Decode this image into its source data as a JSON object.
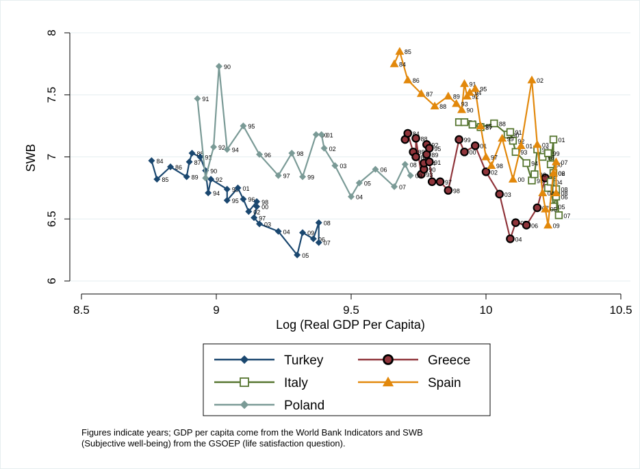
{
  "chart_data": {
    "type": "line",
    "xlabel": "Log (Real GDP Per Capita)",
    "ylabel": "SWB",
    "xlim": [
      8.5,
      10.5
    ],
    "ylim": [
      6,
      8
    ],
    "xticks": [
      "8.5",
      "9",
      "9.5",
      "10",
      "10.5"
    ],
    "yticks": [
      "6",
      "6.5",
      "7",
      "7.5",
      "8"
    ],
    "grid": "horizontal",
    "legend_position": "bottom",
    "note_line1": "Figures indicate years; GDP per capita come from the World Bank Indicators and SWB",
    "note_line2": "(Subjective well-being) from the GSOEP (life satisfaction question).",
    "series": [
      {
        "name": "Turkey",
        "color": "#1a476f",
        "marker": "diamond",
        "points": [
          {
            "x": 8.76,
            "y": 6.97,
            "label": "84"
          },
          {
            "x": 8.78,
            "y": 6.82,
            "label": "85"
          },
          {
            "x": 8.83,
            "y": 6.92,
            "label": "86"
          },
          {
            "x": 8.89,
            "y": 6.84,
            "label": "89"
          },
          {
            "x": 8.9,
            "y": 6.96,
            "label": "87"
          },
          {
            "x": 8.91,
            "y": 7.03,
            "label": "88"
          },
          {
            "x": 8.94,
            "y": 7.0,
            "label": "91"
          },
          {
            "x": 8.96,
            "y": 6.89,
            "label": "90"
          },
          {
            "x": 8.97,
            "y": 6.71,
            "label": "94"
          },
          {
            "x": 8.98,
            "y": 6.82,
            "label": "92"
          },
          {
            "x": 9.04,
            "y": 6.74,
            "label": "93"
          },
          {
            "x": 9.04,
            "y": 6.65,
            "label": "95"
          },
          {
            "x": 9.08,
            "y": 6.75,
            "label": "01"
          },
          {
            "x": 9.1,
            "y": 6.66,
            "label": "96"
          },
          {
            "x": 9.12,
            "y": 6.56,
            "label": "02"
          },
          {
            "x": 9.15,
            "y": 6.64,
            "label": "98"
          },
          {
            "x": 9.15,
            "y": 6.6,
            "label": "00"
          },
          {
            "x": 9.14,
            "y": 6.51,
            "label": "97"
          },
          {
            "x": 9.16,
            "y": 6.46,
            "label": "03"
          },
          {
            "x": 9.23,
            "y": 6.4,
            "label": "04"
          },
          {
            "x": 9.3,
            "y": 6.21,
            "label": "05"
          },
          {
            "x": 9.32,
            "y": 6.39,
            "label": "09"
          },
          {
            "x": 9.36,
            "y": 6.34,
            "label": "06"
          },
          {
            "x": 9.38,
            "y": 6.47,
            "label": "08"
          },
          {
            "x": 9.38,
            "y": 6.31,
            "label": "07"
          }
        ]
      },
      {
        "name": "Greece",
        "color": "#90353b",
        "marker": "circle",
        "points": [
          {
            "x": 9.7,
            "y": 7.14,
            "label": ""
          },
          {
            "x": 9.71,
            "y": 7.19,
            "label": "84"
          },
          {
            "x": 9.73,
            "y": 7.04,
            "label": "85"
          },
          {
            "x": 9.74,
            "y": 7.0,
            "label": "86"
          },
          {
            "x": 9.74,
            "y": 7.15,
            "label": "88"
          },
          {
            "x": 9.76,
            "y": 6.86,
            "label": "93"
          },
          {
            "x": 9.77,
            "y": 6.9,
            "label": "90"
          },
          {
            "x": 9.77,
            "y": 6.95,
            "label": "94"
          },
          {
            "x": 9.78,
            "y": 7.02,
            "label": "89"
          },
          {
            "x": 9.78,
            "y": 7.1,
            "label": "92"
          },
          {
            "x": 9.79,
            "y": 7.07,
            "label": "95"
          },
          {
            "x": 9.79,
            "y": 6.96,
            "label": "91"
          },
          {
            "x": 9.8,
            "y": 6.8,
            "label": "96"
          },
          {
            "x": 9.83,
            "y": 6.8,
            "label": "97"
          },
          {
            "x": 9.86,
            "y": 6.73,
            "label": "98"
          },
          {
            "x": 9.9,
            "y": 7.14,
            "label": "99"
          },
          {
            "x": 9.92,
            "y": 7.04,
            "label": "00"
          },
          {
            "x": 9.96,
            "y": 7.09,
            "label": "01"
          },
          {
            "x": 10.0,
            "y": 6.88,
            "label": "02"
          },
          {
            "x": 10.05,
            "y": 6.7,
            "label": "03"
          },
          {
            "x": 10.09,
            "y": 6.34,
            "label": "04"
          },
          {
            "x": 10.11,
            "y": 6.47,
            "label": "05"
          },
          {
            "x": 10.15,
            "y": 6.45,
            "label": "06"
          },
          {
            "x": 10.19,
            "y": 6.59,
            "label": "07"
          },
          {
            "x": 10.22,
            "y": 6.83,
            "label": "08"
          }
        ]
      },
      {
        "name": "Italy",
        "color": "#55752f",
        "marker": "square",
        "points": [
          {
            "x": 9.9,
            "y": 7.28,
            "label": "85"
          },
          {
            "x": 9.92,
            "y": 7.28,
            "label": "84"
          },
          {
            "x": 9.95,
            "y": 7.26,
            "label": "86"
          },
          {
            "x": 9.98,
            "y": 7.24,
            "label": "87"
          },
          {
            "x": 10.03,
            "y": 7.27,
            "label": "88"
          },
          {
            "x": 10.08,
            "y": 7.18,
            "label": "90"
          },
          {
            "x": 10.09,
            "y": 7.2,
            "label": "91"
          },
          {
            "x": 10.1,
            "y": 7.13,
            "label": "92"
          },
          {
            "x": 10.11,
            "y": 7.04,
            "label": "93"
          },
          {
            "x": 10.15,
            "y": 6.95,
            "label": "94"
          },
          {
            "x": 10.17,
            "y": 6.81,
            "label": "95"
          },
          {
            "x": 10.18,
            "y": 6.86,
            "label": "96"
          },
          {
            "x": 10.19,
            "y": 7.06,
            "label": "97"
          },
          {
            "x": 10.21,
            "y": 7.0,
            "label": "98"
          },
          {
            "x": 10.23,
            "y": 7.03,
            "label": "99"
          },
          {
            "x": 10.24,
            "y": 6.94,
            "label": "00"
          },
          {
            "x": 10.25,
            "y": 7.14,
            "label": "01"
          },
          {
            "x": 10.25,
            "y": 6.87,
            "label": "02"
          },
          {
            "x": 10.23,
            "y": 6.75,
            "label": "03"
          },
          {
            "x": 10.24,
            "y": 6.8,
            "label": "04"
          },
          {
            "x": 10.25,
            "y": 6.6,
            "label": "05"
          },
          {
            "x": 10.26,
            "y": 6.68,
            "label": "06"
          },
          {
            "x": 10.27,
            "y": 6.53,
            "label": "07"
          },
          {
            "x": 10.26,
            "y": 6.74,
            "label": "08"
          }
        ]
      },
      {
        "name": "Spain",
        "color": "#e2880b",
        "marker": "triangle",
        "points": [
          {
            "x": 9.66,
            "y": 7.75,
            "label": "84"
          },
          {
            "x": 9.68,
            "y": 7.85,
            "label": "85"
          },
          {
            "x": 9.71,
            "y": 7.62,
            "label": "86"
          },
          {
            "x": 9.76,
            "y": 7.51,
            "label": "87"
          },
          {
            "x": 9.81,
            "y": 7.41,
            "label": "88"
          },
          {
            "x": 9.86,
            "y": 7.49,
            "label": "89"
          },
          {
            "x": 9.89,
            "y": 7.43,
            "label": "93"
          },
          {
            "x": 9.91,
            "y": 7.38,
            "label": "90"
          },
          {
            "x": 9.92,
            "y": 7.59,
            "label": "91"
          },
          {
            "x": 9.93,
            "y": 7.49,
            "label": "92"
          },
          {
            "x": 9.94,
            "y": 7.52,
            "label": "94"
          },
          {
            "x": 9.96,
            "y": 7.55,
            "label": "95"
          },
          {
            "x": 9.98,
            "y": 7.25,
            "label": "96"
          },
          {
            "x": 10.0,
            "y": 7.0,
            "label": "97"
          },
          {
            "x": 10.02,
            "y": 6.93,
            "label": "98"
          },
          {
            "x": 10.06,
            "y": 7.15,
            "label": "99"
          },
          {
            "x": 10.1,
            "y": 6.82,
            "label": "00"
          },
          {
            "x": 10.13,
            "y": 7.09,
            "label": "01"
          },
          {
            "x": 10.17,
            "y": 7.62,
            "label": "02"
          },
          {
            "x": 10.19,
            "y": 7.1,
            "label": "03"
          },
          {
            "x": 10.21,
            "y": 6.71,
            "label": "04"
          },
          {
            "x": 10.22,
            "y": 6.58,
            "label": "05"
          },
          {
            "x": 10.23,
            "y": 6.45,
            "label": "09"
          },
          {
            "x": 10.25,
            "y": 6.87,
            "label": "06"
          },
          {
            "x": 10.26,
            "y": 6.96,
            "label": "07"
          },
          {
            "x": 10.26,
            "y": 6.71,
            "label": "08"
          }
        ]
      },
      {
        "name": "Poland",
        "color": "#7a9a96",
        "marker": "diamond",
        "points": [
          {
            "x": 8.93,
            "y": 7.47,
            "label": "91"
          },
          {
            "x": 8.96,
            "y": 6.83,
            "label": ""
          },
          {
            "x": 8.99,
            "y": 7.08,
            "label": "92"
          },
          {
            "x": 9.01,
            "y": 7.73,
            "label": "90"
          },
          {
            "x": 9.04,
            "y": 7.06,
            "label": "94"
          },
          {
            "x": 9.1,
            "y": 7.25,
            "label": "95"
          },
          {
            "x": 9.16,
            "y": 7.02,
            "label": "96"
          },
          {
            "x": 9.23,
            "y": 6.85,
            "label": "97"
          },
          {
            "x": 9.28,
            "y": 7.03,
            "label": "98"
          },
          {
            "x": 9.32,
            "y": 6.84,
            "label": "99"
          },
          {
            "x": 9.37,
            "y": 7.18,
            "label": "00"
          },
          {
            "x": 9.39,
            "y": 7.18,
            "label": "01"
          },
          {
            "x": 9.4,
            "y": 7.07,
            "label": "02"
          },
          {
            "x": 9.44,
            "y": 6.93,
            "label": "03"
          },
          {
            "x": 9.5,
            "y": 6.68,
            "label": "04"
          },
          {
            "x": 9.53,
            "y": 6.79,
            "label": "05"
          },
          {
            "x": 9.59,
            "y": 6.9,
            "label": "06"
          },
          {
            "x": 9.66,
            "y": 6.76,
            "label": "07"
          },
          {
            "x": 9.7,
            "y": 6.94,
            "label": "08"
          },
          {
            "x": 9.72,
            "y": 6.85,
            "label": "09"
          }
        ]
      }
    ]
  }
}
